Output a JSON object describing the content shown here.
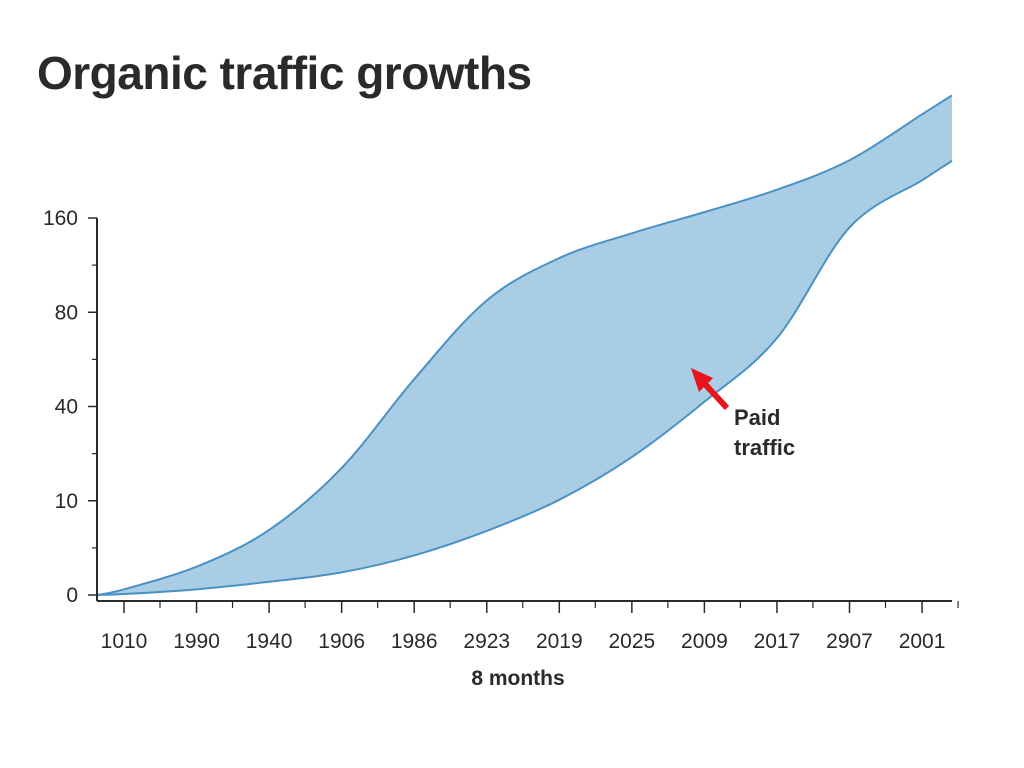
{
  "chart_data": {
    "type": "area",
    "title": "Organic traffic growths",
    "xlabel": "8 months",
    "ylabel": "",
    "categories": [
      "1010",
      "1990",
      "1940",
      "1906",
      "1986",
      "2923",
      "2019",
      "2025",
      "2009",
      "2017",
      "2907",
      "2001"
    ],
    "y_ticks": [
      0,
      10,
      40,
      80,
      160
    ],
    "y_scale": "non-uniform (ticks equally spaced)",
    "grid": false,
    "series": [
      {
        "role": "upper boundary",
        "values": [
          0.6,
          3,
          6.9,
          20.4,
          51.6,
          90,
          126,
          147,
          165,
          184,
          209,
          248
        ]
      },
      {
        "role": "lower boundary",
        "values": [
          0.1,
          0.6,
          1.4,
          2.4,
          4.2,
          6.8,
          10.3,
          23.9,
          42,
          69,
          152,
          192
        ]
      }
    ],
    "annotation": {
      "text_line1": "Paid",
      "text_line2": "traffic",
      "arrow_color": "#e8141b"
    },
    "colors": {
      "fill": "#a9cde4",
      "stroke": "#4a92c4",
      "axis": "#2a2a2a"
    }
  }
}
